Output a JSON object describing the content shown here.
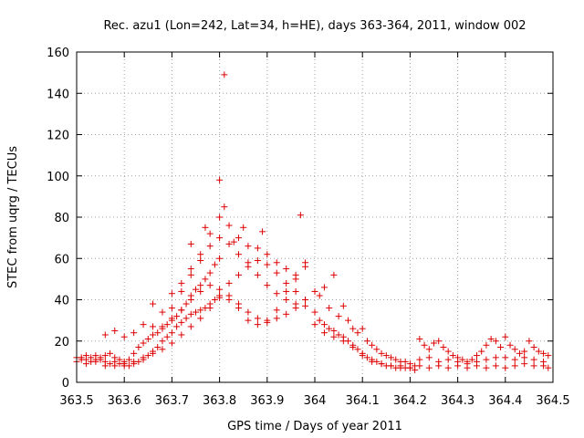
{
  "chart_data": {
    "type": "scatter",
    "title": "Rec. azu1 (Lon=242, Lat=34, h=HE), days 363-364, 2011, window 002",
    "xlabel": "GPS time / Days of year 2011",
    "ylabel": "STEC from uqrg / TECUs",
    "xlim": [
      363.5,
      364.5
    ],
    "ylim": [
      0,
      160
    ],
    "x_ticks": [
      363.5,
      363.6,
      363.7,
      363.8,
      363.9,
      364,
      364.1,
      364.2,
      364.3,
      364.4,
      364.5
    ],
    "x_tick_labels": [
      "363.5",
      "363.6",
      "363.7",
      "363.8",
      "363.9",
      "364",
      "364.1",
      "364.2",
      "364.3",
      "364.4",
      "364.5"
    ],
    "y_ticks": [
      0,
      20,
      40,
      60,
      80,
      100,
      120,
      140,
      160
    ],
    "y_tick_labels": [
      "0",
      "20",
      "40",
      "60",
      "80",
      "100",
      "120",
      "140",
      "160"
    ],
    "grid": true,
    "marker": "+",
    "marker_color": "#dd0000",
    "series": [
      {
        "points": [
          [
            363.5,
            10
          ],
          [
            363.51,
            12
          ],
          [
            363.52,
            11
          ],
          [
            363.53,
            10
          ],
          [
            363.54,
            13
          ],
          [
            363.55,
            11
          ],
          [
            363.56,
            10
          ],
          [
            363.57,
            9
          ],
          [
            363.58,
            10
          ],
          [
            363.59,
            9
          ],
          [
            363.6,
            10
          ],
          [
            363.61,
            11
          ],
          [
            363.62,
            14
          ],
          [
            363.63,
            17
          ],
          [
            363.64,
            19
          ],
          [
            363.65,
            21
          ],
          [
            363.66,
            23
          ],
          [
            363.67,
            24
          ],
          [
            363.68,
            27
          ],
          [
            363.69,
            28
          ],
          [
            363.7,
            30
          ],
          [
            363.71,
            32
          ],
          [
            363.72,
            35
          ],
          [
            363.73,
            38
          ],
          [
            363.74,
            42
          ],
          [
            363.75,
            45
          ],
          [
            363.76,
            47
          ],
          [
            363.77,
            50
          ],
          [
            363.78,
            53
          ],
          [
            363.79,
            57
          ],
          [
            363.8,
            60
          ],
          [
            363.5,
            12
          ],
          [
            363.51,
            11
          ],
          [
            363.52,
            13
          ],
          [
            363.53,
            12
          ],
          [
            363.54,
            11
          ],
          [
            363.55,
            12
          ],
          [
            363.56,
            13
          ],
          [
            363.57,
            14
          ],
          [
            363.58,
            12
          ],
          [
            363.59,
            11
          ],
          [
            363.6,
            9
          ],
          [
            363.61,
            8
          ],
          [
            363.62,
            9
          ],
          [
            363.63,
            10
          ],
          [
            363.64,
            11
          ],
          [
            363.65,
            13
          ],
          [
            363.66,
            15
          ],
          [
            363.67,
            17
          ],
          [
            363.68,
            20
          ],
          [
            363.69,
            22
          ],
          [
            363.7,
            24
          ],
          [
            363.71,
            27
          ],
          [
            363.72,
            29
          ],
          [
            363.73,
            31
          ],
          [
            363.74,
            33
          ],
          [
            363.75,
            34
          ],
          [
            363.76,
            35
          ],
          [
            363.77,
            36
          ],
          [
            363.78,
            38
          ],
          [
            363.79,
            40
          ],
          [
            363.8,
            41
          ],
          [
            363.52,
            9
          ],
          [
            363.54,
            10
          ],
          [
            363.56,
            8
          ],
          [
            363.58,
            8
          ],
          [
            363.6,
            8
          ],
          [
            363.62,
            10
          ],
          [
            363.64,
            12
          ],
          [
            363.66,
            14
          ],
          [
            363.68,
            16
          ],
          [
            363.7,
            19
          ],
          [
            363.72,
            23
          ],
          [
            363.74,
            27
          ],
          [
            363.76,
            31
          ],
          [
            363.78,
            36
          ],
          [
            363.8,
            42
          ],
          [
            363.82,
            48
          ],
          [
            363.84,
            52
          ],
          [
            363.86,
            56
          ],
          [
            363.88,
            59
          ],
          [
            363.9,
            57
          ],
          [
            363.92,
            53
          ],
          [
            363.94,
            48
          ],
          [
            363.96,
            44
          ],
          [
            363.98,
            40
          ],
          [
            363.56,
            23
          ],
          [
            363.58,
            25
          ],
          [
            363.6,
            22
          ],
          [
            363.62,
            24
          ],
          [
            363.64,
            28
          ],
          [
            363.66,
            27
          ],
          [
            363.68,
            26
          ],
          [
            363.7,
            31
          ],
          [
            363.72,
            35
          ],
          [
            363.74,
            40
          ],
          [
            363.76,
            44
          ],
          [
            363.78,
            47
          ],
          [
            363.8,
            45
          ],
          [
            363.82,
            42
          ],
          [
            363.84,
            38
          ],
          [
            363.86,
            34
          ],
          [
            363.88,
            31
          ],
          [
            363.9,
            30
          ],
          [
            363.92,
            31
          ],
          [
            363.94,
            33
          ],
          [
            363.96,
            36
          ],
          [
            363.98,
            40
          ],
          [
            363.66,
            38
          ],
          [
            363.68,
            34
          ],
          [
            363.7,
            36
          ],
          [
            363.72,
            44
          ],
          [
            363.74,
            52
          ],
          [
            363.76,
            59
          ],
          [
            363.78,
            66
          ],
          [
            363.8,
            70
          ],
          [
            363.82,
            67
          ],
          [
            363.84,
            62
          ],
          [
            363.86,
            58
          ],
          [
            363.88,
            52
          ],
          [
            363.9,
            47
          ],
          [
            363.92,
            43
          ],
          [
            363.94,
            40
          ],
          [
            363.96,
            38
          ],
          [
            363.98,
            37
          ],
          [
            363.7,
            43
          ],
          [
            363.72,
            48
          ],
          [
            363.74,
            55
          ],
          [
            363.76,
            62
          ],
          [
            363.78,
            72
          ],
          [
            363.8,
            80
          ],
          [
            363.81,
            85
          ],
          [
            363.82,
            76
          ],
          [
            363.84,
            70
          ],
          [
            363.86,
            66
          ],
          [
            363.88,
            65
          ],
          [
            363.9,
            62
          ],
          [
            363.92,
            58
          ],
          [
            363.94,
            55
          ],
          [
            363.96,
            50
          ],
          [
            363.97,
            81
          ],
          [
            363.98,
            58
          ],
          [
            363.8,
            98
          ],
          [
            363.81,
            149
          ],
          [
            363.83,
            68
          ],
          [
            363.85,
            75
          ],
          [
            363.89,
            73
          ],
          [
            363.74,
            67
          ],
          [
            363.77,
            75
          ],
          [
            363.82,
            40
          ],
          [
            363.84,
            36
          ],
          [
            363.86,
            30
          ],
          [
            363.88,
            28
          ],
          [
            363.9,
            29
          ],
          [
            363.92,
            35
          ],
          [
            363.94,
            44
          ],
          [
            363.96,
            52
          ],
          [
            363.98,
            56
          ],
          [
            364.0,
            34
          ],
          [
            364.01,
            30
          ],
          [
            364.02,
            28
          ],
          [
            364.03,
            26
          ],
          [
            364.04,
            25
          ],
          [
            364.05,
            23
          ],
          [
            364.06,
            22
          ],
          [
            364.07,
            20
          ],
          [
            364.08,
            18
          ],
          [
            364.09,
            16
          ],
          [
            364.1,
            14
          ],
          [
            364.11,
            12
          ],
          [
            364.12,
            11
          ],
          [
            364.13,
            10
          ],
          [
            364.14,
            9
          ],
          [
            364.15,
            8
          ],
          [
            364.16,
            8
          ],
          [
            364.17,
            7
          ],
          [
            364.18,
            7
          ],
          [
            364.19,
            7
          ],
          [
            364.2,
            7
          ],
          [
            364.21,
            6
          ],
          [
            364.0,
            44
          ],
          [
            364.01,
            42
          ],
          [
            364.02,
            46
          ],
          [
            364.03,
            36
          ],
          [
            364.04,
            52
          ],
          [
            364.05,
            32
          ],
          [
            364.06,
            37
          ],
          [
            364.07,
            30
          ],
          [
            364.08,
            26
          ],
          [
            364.09,
            24
          ],
          [
            364.1,
            26
          ],
          [
            364.11,
            20
          ],
          [
            364.12,
            18
          ],
          [
            364.13,
            16
          ],
          [
            364.14,
            14
          ],
          [
            364.15,
            13
          ],
          [
            364.16,
            12
          ],
          [
            364.17,
            11
          ],
          [
            364.18,
            10
          ],
          [
            364.19,
            10
          ],
          [
            364.2,
            9
          ],
          [
            364.21,
            8
          ],
          [
            364.0,
            28
          ],
          [
            364.02,
            24
          ],
          [
            364.04,
            22
          ],
          [
            364.06,
            20
          ],
          [
            364.08,
            17
          ],
          [
            364.1,
            13
          ],
          [
            364.12,
            10
          ],
          [
            364.14,
            9
          ],
          [
            364.16,
            8
          ],
          [
            364.18,
            8
          ],
          [
            364.2,
            7
          ],
          [
            364.22,
            21
          ],
          [
            364.23,
            18
          ],
          [
            364.24,
            16
          ],
          [
            364.25,
            19
          ],
          [
            364.26,
            20
          ],
          [
            364.27,
            17
          ],
          [
            364.28,
            15
          ],
          [
            364.29,
            13
          ],
          [
            364.3,
            12
          ],
          [
            364.31,
            11
          ],
          [
            364.32,
            10
          ],
          [
            364.33,
            11
          ],
          [
            364.34,
            13
          ],
          [
            364.35,
            15
          ],
          [
            364.36,
            18
          ],
          [
            364.37,
            21
          ],
          [
            364.38,
            20
          ],
          [
            364.39,
            17
          ],
          [
            364.4,
            22
          ],
          [
            364.41,
            18
          ],
          [
            364.42,
            16
          ],
          [
            364.43,
            14
          ],
          [
            364.44,
            15
          ],
          [
            364.45,
            20
          ],
          [
            364.46,
            17
          ],
          [
            364.47,
            15
          ],
          [
            364.48,
            14
          ],
          [
            364.49,
            13
          ],
          [
            364.22,
            11
          ],
          [
            364.24,
            12
          ],
          [
            364.26,
            10
          ],
          [
            364.28,
            11
          ],
          [
            364.3,
            10
          ],
          [
            364.32,
            9
          ],
          [
            364.34,
            10
          ],
          [
            364.36,
            11
          ],
          [
            364.38,
            12
          ],
          [
            364.4,
            12
          ],
          [
            364.42,
            11
          ],
          [
            364.44,
            12
          ],
          [
            364.46,
            11
          ],
          [
            364.48,
            10
          ],
          [
            364.22,
            8
          ],
          [
            364.24,
            7
          ],
          [
            364.26,
            8
          ],
          [
            364.28,
            7
          ],
          [
            364.3,
            8
          ],
          [
            364.32,
            7
          ],
          [
            364.34,
            8
          ],
          [
            364.36,
            7
          ],
          [
            364.38,
            8
          ],
          [
            364.4,
            7
          ],
          [
            364.42,
            8
          ],
          [
            364.44,
            9
          ],
          [
            364.46,
            8
          ],
          [
            364.48,
            8
          ],
          [
            364.49,
            7
          ]
        ]
      }
    ]
  }
}
